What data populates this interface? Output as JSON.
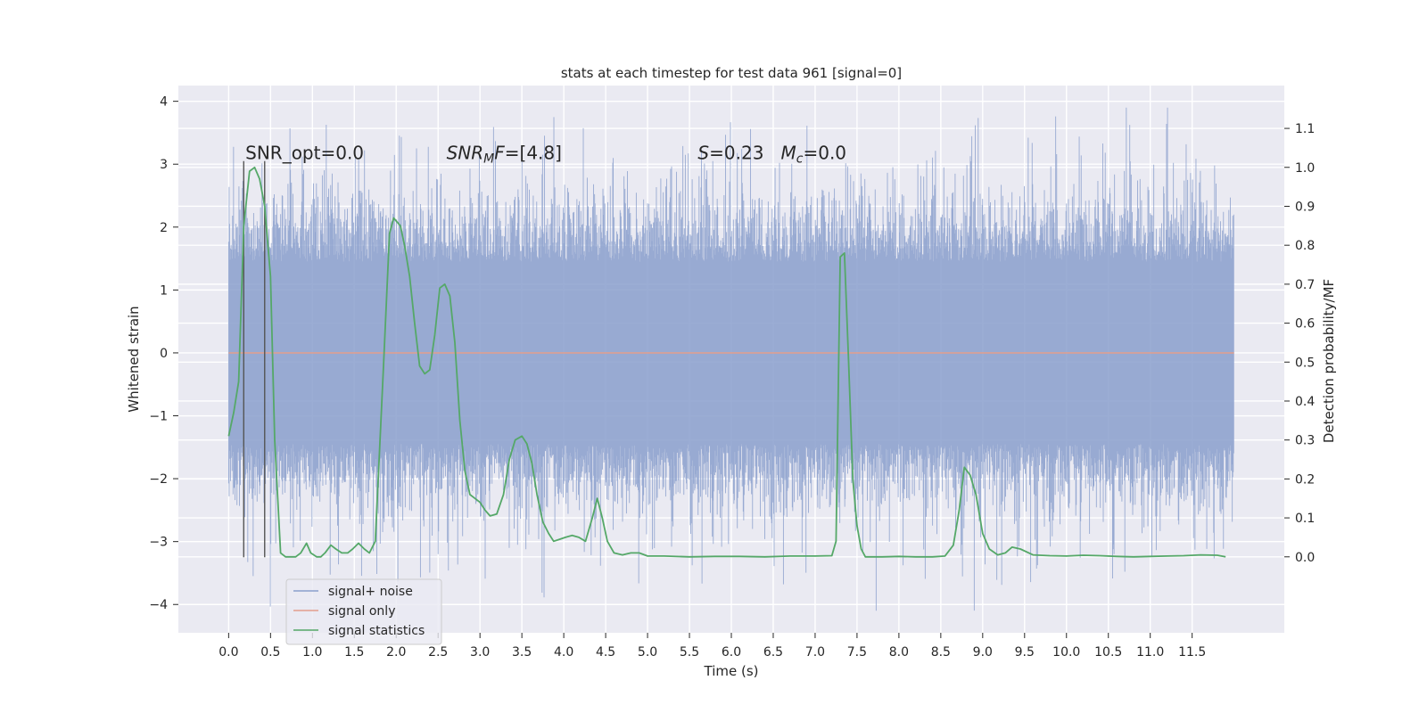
{
  "chart_data": {
    "type": "line",
    "title": "stats at each timestep for test data 961 [signal=0]",
    "xlabel": "Time (s)",
    "ylabel": "Whitened strain",
    "ylabel_right": "Detection probability/MF",
    "xlim": [
      -0.6,
      12.6
    ],
    "ylim": [
      -4.45,
      4.25
    ],
    "ylim_right": [
      -0.195,
      1.21
    ],
    "x_ticks": [
      "0.0",
      "0.5",
      "1.0",
      "1.5",
      "2.0",
      "2.5",
      "3.0",
      "3.5",
      "4.0",
      "4.5",
      "5.0",
      "5.5",
      "6.0",
      "6.5",
      "7.0",
      "7.5",
      "8.0",
      "8.5",
      "9.0",
      "9.5",
      "10.0",
      "10.5",
      "11.0",
      "11.5"
    ],
    "y_ticks": [
      "4",
      "3",
      "2",
      "1",
      "0",
      "−1",
      "−2",
      "−3",
      "−4"
    ],
    "y_ticks_right": [
      "1.1",
      "1.0",
      "0.9",
      "0.8",
      "0.7",
      "0.6",
      "0.5",
      "0.4",
      "0.3",
      "0.2",
      "0.1",
      "0.0"
    ],
    "grid": true,
    "legend_placement": "lower-left",
    "annotations": [
      {
        "text": "SNR_opt=0.0",
        "x": 0.2,
        "y": 3.08
      },
      {
        "text": "SNR_MF=[4.8]",
        "x": 2.6,
        "y": 3.08
      },
      {
        "text": "S=0.23   M_c=0.0",
        "x": 5.6,
        "y": 3.08
      }
    ],
    "vertical_lines": [
      {
        "x": 0.18,
        "y_from": -3.25,
        "y_to": 3.05
      },
      {
        "x": 0.43,
        "y_from": -3.25,
        "y_to": 3.05
      }
    ],
    "noise_band": {
      "x_range": [
        0.0,
        12.0
      ],
      "typical_amplitude": 1.8,
      "peak_max": 3.9,
      "peak_min": -4.1
    },
    "series": [
      {
        "name": "signal+ noise",
        "axis": "left",
        "color": "#8a9fcd",
        "description_kind": "dense-noise"
      },
      {
        "name": "signal only",
        "axis": "left",
        "color": "#e39e8c",
        "x": [
          0.0,
          12.0
        ],
        "y": [
          0.0,
          0.0
        ]
      },
      {
        "name": "signal statistics",
        "axis": "right",
        "color": "#55a868",
        "x": [
          0.0,
          0.06,
          0.12,
          0.18,
          0.25,
          0.31,
          0.37,
          0.43,
          0.5,
          0.55,
          0.62,
          0.68,
          0.75,
          0.8,
          0.86,
          0.93,
          0.98,
          1.05,
          1.1,
          1.15,
          1.22,
          1.28,
          1.35,
          1.42,
          1.48,
          1.55,
          1.62,
          1.68,
          1.75,
          1.85,
          1.92,
          1.97,
          2.05,
          2.1,
          2.16,
          2.22,
          2.28,
          2.34,
          2.4,
          2.46,
          2.52,
          2.58,
          2.64,
          2.7,
          2.76,
          2.82,
          2.88,
          2.94,
          3.0,
          3.06,
          3.12,
          3.2,
          3.28,
          3.35,
          3.42,
          3.5,
          3.56,
          3.62,
          3.68,
          3.75,
          3.82,
          3.88,
          3.95,
          4.02,
          4.1,
          4.18,
          4.26,
          4.34,
          4.4,
          4.46,
          4.52,
          4.6,
          4.7,
          4.8,
          4.9,
          5.0,
          5.2,
          5.5,
          5.8,
          6.1,
          6.4,
          6.7,
          7.0,
          7.2,
          7.25,
          7.3,
          7.35,
          7.4,
          7.45,
          7.5,
          7.55,
          7.6,
          7.7,
          7.8,
          8.0,
          8.2,
          8.4,
          8.55,
          8.65,
          8.72,
          8.78,
          8.85,
          8.92,
          9.0,
          9.08,
          9.18,
          9.27,
          9.35,
          9.45,
          9.6,
          9.8,
          10.0,
          10.2,
          10.4,
          10.6,
          10.8,
          11.0,
          11.2,
          11.4,
          11.6,
          11.8,
          11.9
        ],
        "y": [
          0.31,
          0.37,
          0.45,
          0.85,
          0.99,
          1.0,
          0.97,
          0.9,
          0.72,
          0.3,
          0.01,
          0.0,
          0.0,
          0.0,
          0.01,
          0.035,
          0.01,
          0.0,
          0.0,
          0.01,
          0.03,
          0.02,
          0.01,
          0.01,
          0.02,
          0.035,
          0.02,
          0.01,
          0.04,
          0.5,
          0.83,
          0.87,
          0.85,
          0.8,
          0.72,
          0.6,
          0.49,
          0.47,
          0.48,
          0.57,
          0.69,
          0.7,
          0.67,
          0.55,
          0.35,
          0.22,
          0.16,
          0.15,
          0.14,
          0.12,
          0.105,
          0.11,
          0.16,
          0.25,
          0.3,
          0.31,
          0.29,
          0.24,
          0.16,
          0.09,
          0.06,
          0.04,
          0.045,
          0.05,
          0.055,
          0.05,
          0.04,
          0.1,
          0.15,
          0.1,
          0.04,
          0.01,
          0.005,
          0.01,
          0.01,
          0.002,
          0.002,
          0.0,
          0.001,
          0.001,
          0.0,
          0.002,
          0.002,
          0.003,
          0.04,
          0.77,
          0.78,
          0.5,
          0.2,
          0.08,
          0.02,
          0.0,
          0.0,
          0.0,
          0.001,
          0.0,
          0.0,
          0.002,
          0.03,
          0.12,
          0.23,
          0.21,
          0.16,
          0.06,
          0.02,
          0.005,
          0.01,
          0.025,
          0.02,
          0.005,
          0.003,
          0.002,
          0.004,
          0.003,
          0.001,
          0.0,
          0.001,
          0.002,
          0.003,
          0.005,
          0.004,
          0.0
        ]
      }
    ]
  }
}
